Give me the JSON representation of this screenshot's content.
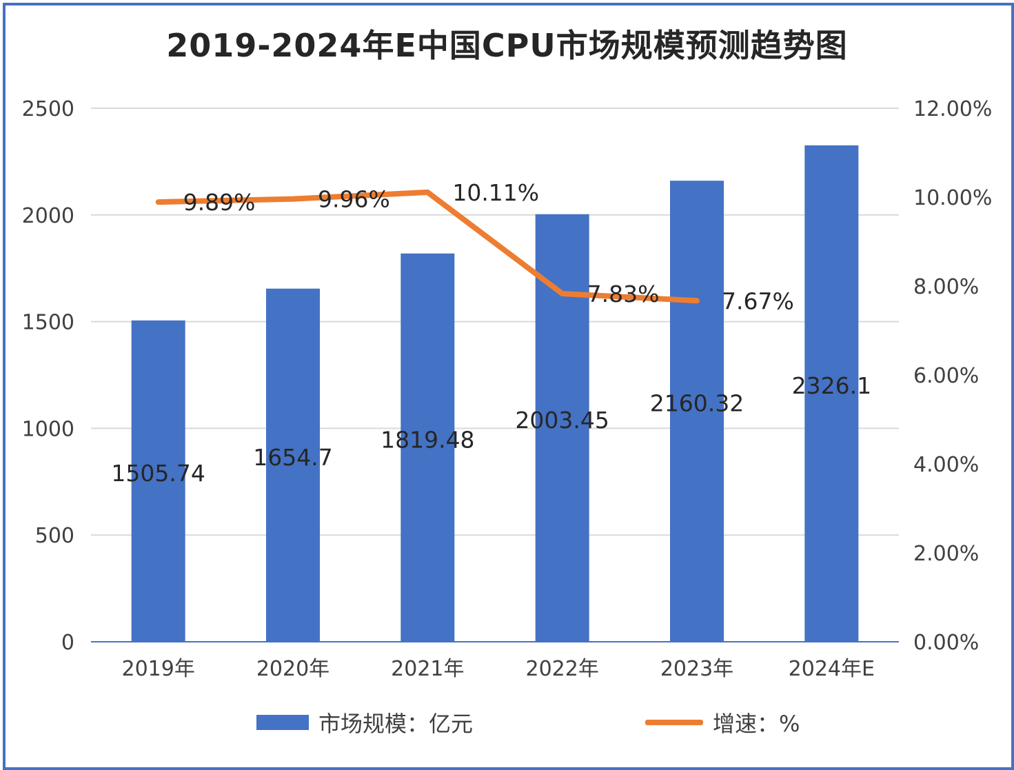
{
  "title": "2019-2024年E中国CPU市场规模预测趋势图",
  "legend": {
    "bar_label": "市场规模：亿元",
    "line_label": "增速：%"
  },
  "colors": {
    "bar": "#4472c4",
    "line": "#ed7d31",
    "frame": "#4472c4",
    "grid": "#d9d9d9",
    "text": "#404040"
  },
  "chart_data": {
    "type": "bar",
    "title": "2019-2024年E中国CPU市场规模预测趋势图",
    "categories": [
      "2019年",
      "2020年",
      "2021年",
      "2022年",
      "2023年",
      "2024年E"
    ],
    "series": [
      {
        "name": "市场规模：亿元",
        "type": "bar",
        "axis": "left",
        "values": [
          1505.74,
          1654.7,
          1819.48,
          2003.45,
          2160.32,
          2326.1
        ],
        "labels": [
          "1505.74",
          "1654.7",
          "1819.48",
          "2003.45",
          "2160.32",
          "2326.1"
        ]
      },
      {
        "name": "增速：%",
        "type": "line",
        "axis": "right",
        "values": [
          9.89,
          9.96,
          10.11,
          7.83,
          7.67,
          null
        ],
        "labels": [
          "9.89%",
          "9.96%",
          "10.11%",
          "7.83%",
          "7.67%",
          ""
        ]
      }
    ],
    "y_left": {
      "min": 0,
      "max": 2500,
      "ticks": [
        0,
        500,
        1000,
        1500,
        2000,
        2500
      ],
      "tick_labels": [
        "0",
        "500",
        "1000",
        "1500",
        "2000",
        "2500"
      ]
    },
    "y_right": {
      "min": 0,
      "max": 12,
      "ticks": [
        0,
        2,
        4,
        6,
        8,
        10,
        12
      ],
      "tick_labels": [
        "0.00%",
        "2.00%",
        "4.00%",
        "6.00%",
        "8.00%",
        "10.00%",
        "12.00%"
      ]
    },
    "grid": true,
    "legend_position": "bottom"
  }
}
